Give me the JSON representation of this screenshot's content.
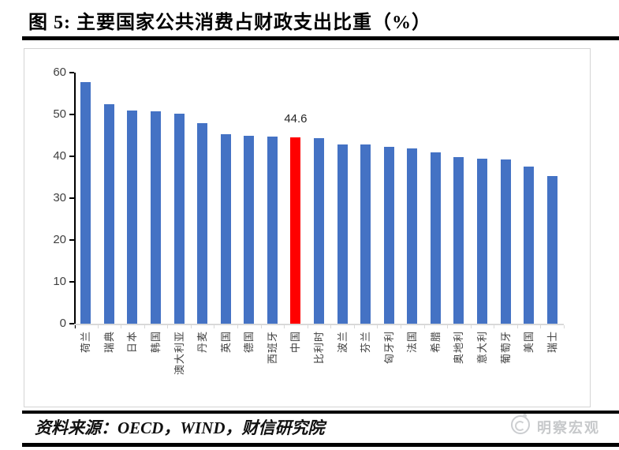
{
  "title": "图 5: 主要国家公共消费占财政支出比重（%）",
  "source": "资料来源：OECD，WIND，财信研究院",
  "watermark": "明察宏观",
  "colors": {
    "bar": "#4472C4",
    "highlight_bar": "#FF0000",
    "axis_text": "#404040",
    "axis_line": "#000000",
    "baseline": "#D9D9D9",
    "chart_border": "#D4D4D4",
    "watermark_text": "#C7C9CB"
  },
  "chart_data": {
    "type": "bar",
    "title": "主要国家公共消费占财政支出比重（%）",
    "xlabel": "",
    "ylabel": "",
    "ylim": [
      0,
      60
    ],
    "yticks": [
      0,
      10,
      20,
      30,
      40,
      50,
      60
    ],
    "grid": false,
    "legend": null,
    "categories": [
      "荷兰",
      "瑞典",
      "日本",
      "韩国",
      "澳大利亚",
      "丹麦",
      "英国",
      "德国",
      "西班牙",
      "中国",
      "比利时",
      "波兰",
      "芬兰",
      "匈牙利",
      "法国",
      "希腊",
      "奥地利",
      "意大利",
      "葡萄牙",
      "美国",
      "瑞士"
    ],
    "values": [
      57.8,
      52.4,
      50.9,
      50.8,
      50.1,
      48.0,
      45.3,
      44.9,
      44.7,
      44.6,
      44.4,
      42.9,
      42.8,
      42.3,
      41.9,
      40.9,
      39.8,
      39.5,
      39.3,
      37.5,
      35.2
    ],
    "highlight_category": "中国",
    "highlight_value_label": "44.6"
  }
}
